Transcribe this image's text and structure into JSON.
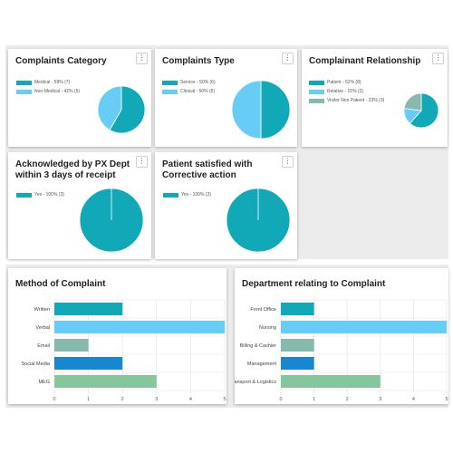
{
  "colors": {
    "teal": "#11a9b8",
    "light_blue": "#67cdf6",
    "sage": "#88b9ad",
    "blue": "#1787cf",
    "green": "#85c79b",
    "gridline": "#e2e2e2"
  },
  "menu_label": "⋮",
  "chart_data": [
    {
      "type": "pie",
      "title": "Complaints Category",
      "legend": "left",
      "series": [
        {
          "name": "Medical - 58% (7)",
          "value": 7,
          "color": "#11a9b8"
        },
        {
          "name": "Non-Medical - 42% (5)",
          "value": 5,
          "color": "#67cdf6"
        }
      ]
    },
    {
      "type": "pie",
      "title": "Complaints Type",
      "legend": "left",
      "series": [
        {
          "name": "Service - 50% (6)",
          "value": 6,
          "color": "#11a9b8"
        },
        {
          "name": "Clinical - 50% (6)",
          "value": 6,
          "color": "#67cdf6"
        }
      ]
    },
    {
      "type": "pie",
      "title": "Complainant Relationship",
      "legend": "left",
      "series": [
        {
          "name": "Patient - 62% (8)",
          "value": 8,
          "color": "#11a9b8"
        },
        {
          "name": "Relative - 15% (2)",
          "value": 2,
          "color": "#67cdf6"
        },
        {
          "name": "Visitor Non Patient - 23% (3)",
          "value": 3,
          "color": "#88b9ad"
        }
      ]
    },
    {
      "type": "pie",
      "title": "Acknowledged by PX Dept within 3 days of receipt",
      "legend": "left",
      "series": [
        {
          "name": "Yes - 100% (3)",
          "value": 3,
          "color": "#11a9b8"
        }
      ]
    },
    {
      "type": "pie",
      "title": "Patient satisfied with Corrective action",
      "legend": "left",
      "series": [
        {
          "name": "Yes - 100% (3)",
          "value": 3,
          "color": "#11a9b8"
        }
      ]
    },
    {
      "type": "bar",
      "orientation": "horizontal",
      "title": "Method of Complaint",
      "categories": [
        "Written",
        "Verbal",
        "Email",
        "Social Media",
        "MEG"
      ],
      "values": [
        2,
        5,
        1,
        2,
        3
      ],
      "colors": [
        "#11a9b8",
        "#67cdf6",
        "#88b9ad",
        "#1787cf",
        "#85c79b"
      ],
      "xlim": [
        0,
        5
      ],
      "xticks": [
        "0",
        "1",
        "2",
        "3",
        "4",
        "5"
      ],
      "grid": true
    },
    {
      "type": "bar",
      "orientation": "horizontal",
      "title": "Department relating to Complaint",
      "categories": [
        "Front Office",
        "Nursing",
        "Billing & Cashier",
        "Management",
        "Transport & Logistics"
      ],
      "values": [
        1,
        5,
        1,
        1,
        3
      ],
      "colors": [
        "#11a9b8",
        "#67cdf6",
        "#88b9ad",
        "#1787cf",
        "#85c79b"
      ],
      "xlim": [
        0,
        5
      ],
      "xticks": [
        "0",
        "1",
        "2",
        "3",
        "4",
        "5"
      ],
      "grid": true
    }
  ]
}
